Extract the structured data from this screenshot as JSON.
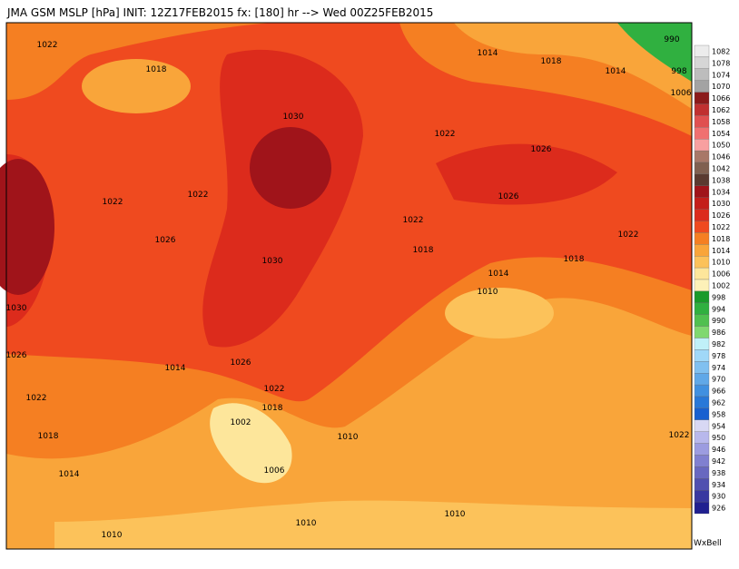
{
  "header": {
    "title": "JMA GSM MSLP [hPa] INIT: 12Z17FEB2015 fx: [180] hr --> Wed 00Z25FEB2015"
  },
  "contour_labels": [
    "1022",
    "1018",
    "1030",
    "1014",
    "1018",
    "990",
    "1014",
    "998",
    "1006",
    "1022",
    "1026",
    "1022",
    "1022",
    "1026",
    "1022",
    "1026",
    "1018",
    "1030",
    "1022",
    "1018",
    "1014",
    "1010",
    "1030",
    "1026",
    "1014",
    "1026",
    "1022",
    "1018",
    "1022",
    "1002",
    "1018",
    "1010",
    "1014",
    "1006",
    "1010",
    "1010",
    "1010",
    "1022"
  ],
  "colorbar": {
    "levels": [
      1082,
      1078,
      1074,
      1070,
      1066,
      1062,
      1058,
      1054,
      1050,
      1046,
      1042,
      1038,
      1034,
      1030,
      1026,
      1022,
      1018,
      1014,
      1010,
      1006,
      1002,
      998,
      994,
      990,
      986,
      982,
      978,
      974,
      970,
      966,
      962,
      958,
      954,
      950,
      946,
      942,
      938,
      934,
      930,
      926
    ],
    "colors": [
      "#ececec",
      "#d6d6d6",
      "#bdbdbd",
      "#a3a3a3",
      "#8b1a1a",
      "#c03030",
      "#e05050",
      "#f07070",
      "#f8a0a0",
      "#a87868",
      "#806050",
      "#5a3a30",
      "#a0141a",
      "#c41e1a",
      "#dc2b1c",
      "#ef4a1f",
      "#f57f22",
      "#f9a53a",
      "#fcc25a",
      "#fde69b",
      "#fdf1b8",
      "#1a9a2a",
      "#30b040",
      "#50c050",
      "#80d870",
      "#c0f0f8",
      "#a0d8f8",
      "#80c0f0",
      "#60a8e8",
      "#4090e0",
      "#2878d8",
      "#1860d0",
      "#d8d8f4",
      "#b8b8ec",
      "#9c9ce0",
      "#8080d0",
      "#6868c0",
      "#5050b0",
      "#3838a0",
      "#202090"
    ]
  },
  "footer": {
    "brand": "WxBell"
  }
}
